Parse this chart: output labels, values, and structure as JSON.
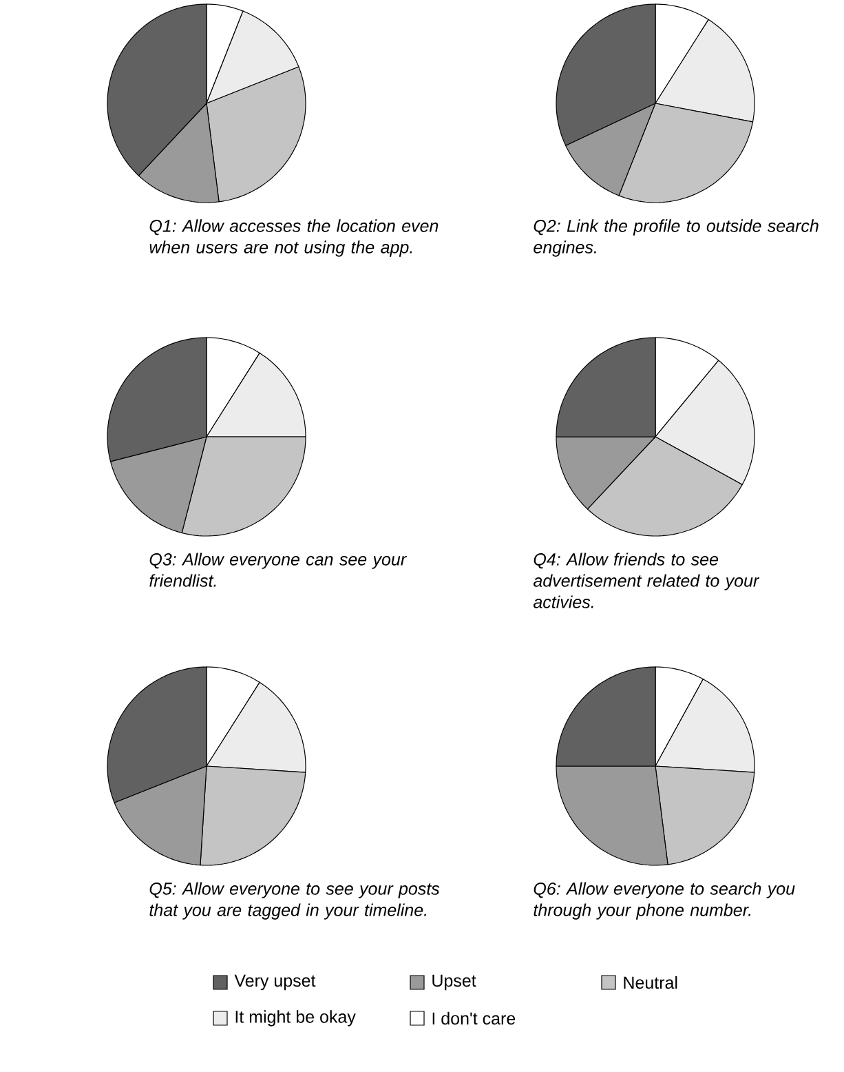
{
  "chart_data": [
    {
      "type": "pie",
      "title": "*Q1: Allow accesses the location even when users are not using the app.*",
      "categories": [
        "I don't care",
        "It might be okay",
        "Neutral",
        "Upset",
        "Very upset"
      ],
      "values": [
        6,
        13,
        29,
        14,
        38
      ],
      "colors": [
        "#ffffff",
        "#ececec",
        "#c4c4c4",
        "#9a9a9a",
        "#616161"
      ],
      "legend": "bottom"
    },
    {
      "type": "pie",
      "title": "*Q2: Link the profile to outside search engines.*",
      "categories": [
        null,
        null,
        null,
        null,
        null
      ],
      "values": [
        9,
        19,
        28,
        12,
        32
      ],
      "colors": [
        "#ffffff",
        "#ececec",
        "#c4c4c4",
        "#9a9a9a",
        "#616161"
      ]
    },
    {
      "type": "pie",
      "title": "*Q3: Allow everyone can see your friendlist.*",
      "categories": [
        null,
        null,
        null,
        null,
        null
      ],
      "values": [
        9,
        16,
        29,
        17,
        29
      ],
      "colors": [
        "#ffffff",
        "#ececec",
        "#c4c4c4",
        "#9a9a9a",
        "#616161"
      ]
    },
    {
      "type": "pie",
      "title": "*Q4: Allow friends to see advertisement related to your activies.*",
      "categories": [
        null,
        null,
        null,
        null,
        null
      ],
      "values": [
        11,
        22,
        29,
        13,
        25
      ],
      "colors": [
        "#ffffff",
        "#ececec",
        "#c4c4c4",
        "#9a9a9a",
        "#616161"
      ]
    },
    {
      "type": "pie",
      "title": "*Q5: Allow everyone to see your posts that you are tagged in your timeline.*",
      "categories": [
        null,
        null,
        null,
        null,
        null
      ],
      "values": [
        9,
        17,
        25,
        18,
        31
      ],
      "colors": [
        "#ffffff",
        "#ececec",
        "#c4c4c4",
        "#9a9a9a",
        "#616161"
      ]
    },
    {
      "type": "pie",
      "title": "*Q6: Allow everyone to search you through your phone number.*",
      "categories": [
        null,
        null,
        null,
        null,
        null
      ],
      "values": [
        8,
        18,
        22,
        27,
        25
      ],
      "colors": [
        "#ffffff",
        "#ececec",
        "#c4c4c4",
        "#9a9a9a",
        "#616161"
      ]
    }
  ]
}
